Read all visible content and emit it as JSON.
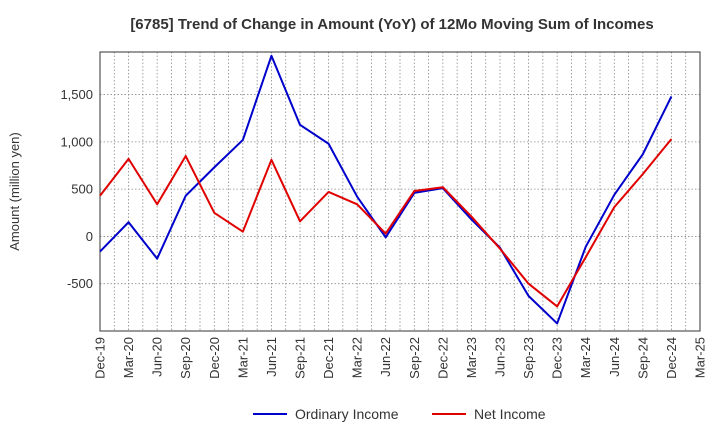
{
  "chart_data": {
    "type": "line",
    "title": "[6785]  Trend of Change in Amount (YoY) of 12Mo Moving Sum of Incomes",
    "xlabel": "",
    "ylabel": "Amount (million yen)",
    "categories": [
      "Dec-19",
      "Mar-20",
      "Jun-20",
      "Sep-20",
      "Dec-20",
      "Mar-21",
      "Jun-21",
      "Sep-21",
      "Dec-21",
      "Mar-22",
      "Jun-22",
      "Sep-22",
      "Dec-22",
      "Mar-23",
      "Jun-23",
      "Sep-23",
      "Dec-23",
      "Mar-24",
      "Jun-24",
      "Sep-24",
      "Dec-24",
      "Mar-25"
    ],
    "yticks": [
      -500,
      0,
      500,
      1000,
      1500
    ],
    "ytick_labels": [
      "-500",
      "0",
      "500",
      "1,000",
      "1,500"
    ],
    "ylim": [
      -1000,
      1950
    ],
    "grid": true,
    "legend_position": "bottom",
    "series": [
      {
        "name": "Ordinary Income",
        "color": "#0000cc",
        "values": [
          -160,
          150,
          -235,
          430,
          730,
          1020,
          1910,
          1180,
          980,
          420,
          -10,
          460,
          510,
          180,
          -120,
          -630,
          -920,
          -110,
          440,
          870,
          1480,
          null
        ]
      },
      {
        "name": "Net Income",
        "color": "#e00000",
        "values": [
          430,
          820,
          340,
          850,
          250,
          50,
          810,
          160,
          470,
          340,
          30,
          480,
          520,
          210,
          -130,
          -500,
          -740,
          -220,
          310,
          660,
          1030,
          null
        ]
      }
    ]
  }
}
